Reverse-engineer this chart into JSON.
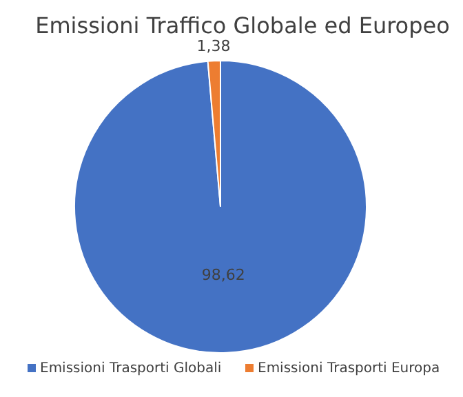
{
  "chart_data": {
    "type": "pie",
    "title": "Emissioni Traffico Globale ed Europeo",
    "categories": [
      "Emissioni Trasporti Globali",
      "Emissioni Trasporti Europa"
    ],
    "values": [
      98.62,
      1.38
    ],
    "colors": [
      "#4472c4",
      "#ed7d31"
    ],
    "value_labels": [
      "98,62",
      "1,38"
    ],
    "legend": "bottom"
  }
}
